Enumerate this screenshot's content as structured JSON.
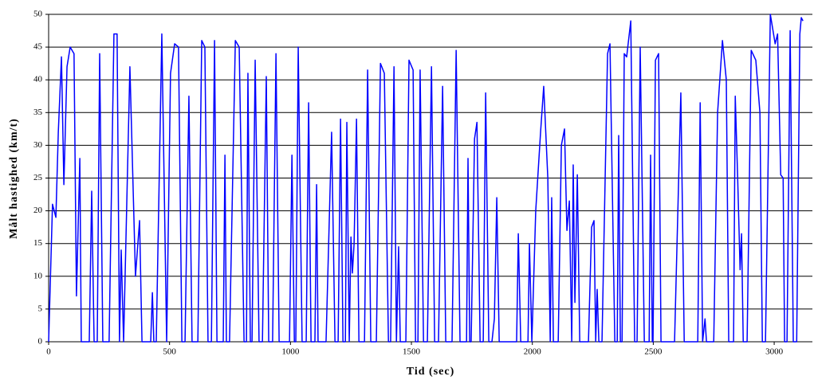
{
  "chart_data": {
    "type": "line",
    "xlabel": "Tid (sec)",
    "ylabel": "Målt hastighed (km/t)",
    "x": [
      0,
      16,
      30,
      40,
      53,
      63,
      76,
      89,
      105,
      115,
      129,
      135,
      168,
      178,
      188,
      201,
      211,
      224,
      250,
      270,
      283,
      293,
      300,
      310,
      336,
      359,
      376,
      386,
      422,
      429,
      435,
      445,
      468,
      488,
      504,
      521,
      537,
      551,
      564,
      580,
      593,
      617,
      633,
      646,
      659,
      673,
      686,
      696,
      722,
      729,
      735,
      748,
      772,
      788,
      808,
      818,
      824,
      834,
      841,
      854,
      870,
      884,
      900,
      910,
      926,
      940,
      953,
      996,
      1006,
      1016,
      1022,
      1032,
      1048,
      1065,
      1075,
      1085,
      1101,
      1108,
      1114,
      1147,
      1170,
      1184,
      1197,
      1207,
      1217,
      1227,
      1233,
      1243,
      1250,
      1256,
      1263,
      1273,
      1283,
      1306,
      1319,
      1332,
      1355,
      1372,
      1388,
      1405,
      1414,
      1428,
      1438,
      1447,
      1454,
      1477,
      1490,
      1507,
      1517,
      1527,
      1536,
      1550,
      1566,
      1583,
      1596,
      1612,
      1629,
      1642,
      1668,
      1685,
      1701,
      1728,
      1734,
      1741,
      1747,
      1761,
      1771,
      1784,
      1797,
      1807,
      1820,
      1833,
      1843,
      1853,
      1863,
      1935,
      1942,
      1952,
      1982,
      1988,
      1998,
      2014,
      2034,
      2047,
      2064,
      2074,
      2080,
      2087,
      2107,
      2120,
      2133,
      2143,
      2153,
      2163,
      2169,
      2176,
      2186,
      2196,
      2232,
      2245,
      2255,
      2262,
      2268,
      2275,
      2288,
      2311,
      2321,
      2341,
      2351,
      2357,
      2364,
      2371,
      2380,
      2390,
      2407,
      2423,
      2433,
      2446,
      2463,
      2483,
      2489,
      2496,
      2499,
      2509,
      2522,
      2532,
      2588,
      2614,
      2628,
      2684,
      2694,
      2704,
      2714,
      2720,
      2750,
      2766,
      2786,
      2802,
      2812,
      2832,
      2839,
      2849,
      2859,
      2865,
      2872,
      2888,
      2905,
      2924,
      2941,
      2951,
      2964,
      2984,
      3004,
      3014,
      3027,
      3037,
      3043,
      3053,
      3066,
      3079,
      3093,
      3106,
      3112,
      3119
    ],
    "series": [
      {
        "color": "#0000ff",
        "values": [
          0,
          21,
          19,
          32,
          43.5,
          24,
          42,
          45,
          44,
          7,
          28,
          0,
          0,
          23,
          0,
          0,
          44,
          0,
          0,
          47,
          47,
          0,
          14,
          0,
          42,
          10,
          18.5,
          0,
          0,
          7.5,
          0,
          0,
          47,
          0,
          41,
          45.5,
          45,
          0,
          0,
          37.5,
          0,
          0,
          46,
          45,
          0,
          0,
          46,
          0,
          0,
          28.5,
          0,
          0,
          46,
          45,
          0,
          0,
          41,
          0,
          0,
          43,
          0,
          0,
          40.5,
          0,
          0,
          44,
          0,
          0,
          28.5,
          0,
          0,
          45,
          0,
          0,
          36.5,
          0,
          0,
          24,
          0,
          0,
          32,
          0,
          0,
          34,
          0,
          0,
          33.5,
          0,
          16,
          10.5,
          15,
          34,
          0,
          0,
          41.5,
          0,
          0,
          42.5,
          41,
          0,
          0,
          42,
          0,
          14.5,
          0,
          0,
          43,
          41.5,
          0,
          0,
          41.5,
          0,
          0,
          42,
          0,
          0,
          39,
          0,
          0,
          44.5,
          0,
          0,
          28,
          0,
          0,
          31,
          33.5,
          0,
          0,
          38,
          0,
          0,
          3.5,
          22,
          0,
          0,
          16.5,
          0,
          0,
          15,
          0,
          20,
          32,
          39,
          25,
          0,
          22,
          0,
          0,
          30,
          32.5,
          17,
          21.5,
          0,
          27,
          6,
          25.5,
          0,
          0,
          17.5,
          18.5,
          0,
          8,
          0,
          0,
          44,
          45.5,
          0,
          0,
          31.5,
          0,
          0,
          44,
          43.5,
          49,
          0,
          0,
          45,
          0,
          0,
          28.5,
          0,
          0,
          43,
          44,
          0,
          0,
          38,
          0,
          0,
          36.5,
          0,
          3.5,
          0,
          0,
          35,
          46,
          40,
          0,
          0,
          37.5,
          25,
          11,
          16.5,
          0,
          0,
          44.5,
          43,
          35,
          0,
          0,
          50,
          45.5,
          47,
          25.5,
          25,
          0,
          0,
          47.5,
          0,
          0,
          47,
          49.5,
          49
        ]
      }
    ],
    "xlim": [
      0,
      3158
    ],
    "xticks": [
      0,
      500,
      1000,
      1500,
      2000,
      2500,
      3000
    ],
    "ylim": [
      0,
      50
    ],
    "yticks": [
      0,
      5,
      10,
      15,
      20,
      25,
      30,
      35,
      40,
      45,
      50
    ],
    "grid": true
  }
}
